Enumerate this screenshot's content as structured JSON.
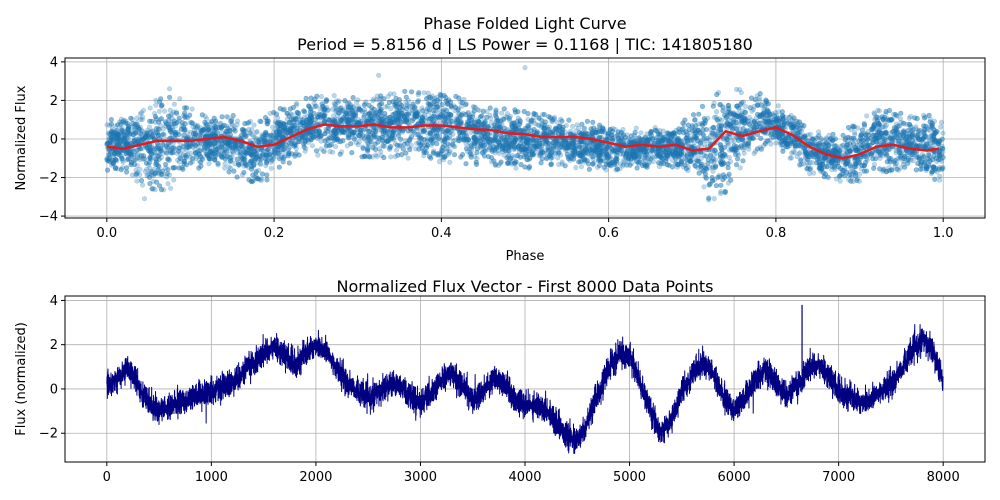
{
  "chart_data": [
    {
      "type": "scatter",
      "title": "Phase Folded Light Curve",
      "subtitle": "Period = 5.8156 d | LS Power = 0.1168 | TIC: 141805180",
      "xlabel": "Phase",
      "ylabel": "Normalized Flux",
      "xlim": [
        -0.05,
        1.05
      ],
      "ylim": [
        -4.1,
        4.2
      ],
      "xticks": [
        0.0,
        0.2,
        0.4,
        0.6,
        0.8,
        1.0
      ],
      "xtick_labels": [
        "0.0",
        "0.2",
        "0.4",
        "0.6",
        "0.8",
        "1.0"
      ],
      "yticks": [
        -4,
        -2,
        0,
        2,
        4
      ],
      "ytick_labels": [
        "−4",
        "−2",
        "0",
        "2",
        "4"
      ],
      "grid": true,
      "series": [
        {
          "kind": "scatter",
          "color": "#1f77b4",
          "opacity": 0.3,
          "approx_point_count": 8000,
          "envelope": {
            "phase": [
              0.0,
              0.02,
              0.04,
              0.06,
              0.08,
              0.1,
              0.12,
              0.14,
              0.16,
              0.18,
              0.2,
              0.22,
              0.24,
              0.26,
              0.28,
              0.3,
              0.32,
              0.34,
              0.36,
              0.38,
              0.4,
              0.42,
              0.44,
              0.46,
              0.48,
              0.5,
              0.52,
              0.54,
              0.56,
              0.58,
              0.6,
              0.62,
              0.64,
              0.66,
              0.68,
              0.7,
              0.72,
              0.74,
              0.76,
              0.78,
              0.8,
              0.82,
              0.84,
              0.86,
              0.88,
              0.9,
              0.92,
              0.94,
              0.96,
              0.98,
              1.0
            ],
            "upper": [
              1.2,
              1.0,
              1.6,
              2.2,
              2.4,
              1.6,
              1.2,
              1.3,
              1.2,
              1.0,
              1.6,
              1.8,
              2.2,
              2.4,
              2.3,
              2.3,
              2.3,
              2.4,
              2.5,
              2.6,
              2.4,
              2.2,
              1.9,
              1.8,
              1.6,
              1.5,
              1.3,
              1.1,
              1.0,
              0.9,
              0.6,
              0.5,
              0.6,
              0.7,
              0.8,
              1.2,
              2.2,
              2.6,
              2.7,
              2.4,
              1.8,
              1.5,
              0.7,
              0.2,
              0.4,
              1.0,
              1.5,
              1.5,
              1.2,
              1.3,
              1.0
            ],
            "lower": [
              -1.8,
              -1.6,
              -2.4,
              -2.8,
              -2.6,
              -1.8,
              -1.4,
              -1.5,
              -2.2,
              -2.6,
              -1.8,
              -1.2,
              -0.9,
              -0.8,
              -0.8,
              -0.9,
              -1.1,
              -1.0,
              -1.1,
              -1.2,
              -1.2,
              -1.3,
              -1.4,
              -1.4,
              -1.5,
              -1.6,
              -1.4,
              -1.4,
              -1.5,
              -1.6,
              -1.7,
              -1.6,
              -1.5,
              -1.5,
              -1.5,
              -2.0,
              -3.3,
              -2.8,
              -1.4,
              -0.7,
              -0.6,
              -1.2,
              -1.8,
              -2.0,
              -2.3,
              -2.2,
              -1.8,
              -1.7,
              -1.8,
              -2.0,
              -2.3
            ]
          }
        },
        {
          "kind": "line",
          "color": "#e41a1c",
          "x": [
            0.0,
            0.02,
            0.04,
            0.06,
            0.08,
            0.1,
            0.12,
            0.14,
            0.16,
            0.18,
            0.2,
            0.22,
            0.24,
            0.26,
            0.28,
            0.3,
            0.32,
            0.34,
            0.36,
            0.38,
            0.4,
            0.42,
            0.44,
            0.46,
            0.48,
            0.5,
            0.52,
            0.54,
            0.56,
            0.58,
            0.6,
            0.62,
            0.64,
            0.66,
            0.68,
            0.7,
            0.72,
            0.74,
            0.76,
            0.78,
            0.8,
            0.82,
            0.84,
            0.86,
            0.88,
            0.9,
            0.92,
            0.94,
            0.96,
            0.98,
            0.995
          ],
          "y": [
            -0.4,
            -0.5,
            -0.3,
            -0.1,
            -0.1,
            -0.1,
            0.0,
            0.1,
            -0.1,
            -0.4,
            -0.3,
            0.1,
            0.5,
            0.75,
            0.65,
            0.65,
            0.75,
            0.6,
            0.6,
            0.7,
            0.7,
            0.6,
            0.5,
            0.45,
            0.3,
            0.25,
            0.1,
            0.1,
            0.1,
            0.0,
            -0.2,
            -0.4,
            -0.3,
            -0.4,
            -0.3,
            -0.6,
            -0.5,
            0.4,
            0.15,
            0.4,
            0.6,
            0.2,
            -0.4,
            -0.8,
            -1.0,
            -0.8,
            -0.4,
            -0.3,
            -0.5,
            -0.6,
            -0.5
          ]
        }
      ]
    },
    {
      "type": "line",
      "title": "Normalized Flux Vector - First 8000 Data Points",
      "xlabel": "",
      "ylabel": "Flux (normalized)",
      "xlim": [
        -400,
        8400
      ],
      "ylim": [
        -3.3,
        4.2
      ],
      "xticks": [
        0,
        1000,
        2000,
        3000,
        4000,
        5000,
        6000,
        7000,
        8000
      ],
      "xtick_labels": [
        "0",
        "1000",
        "2000",
        "3000",
        "4000",
        "5000",
        "6000",
        "7000",
        "8000"
      ],
      "yticks": [
        -2,
        0,
        2,
        4
      ],
      "ytick_labels": [
        "−2",
        "0",
        "2",
        "4"
      ],
      "grid": true,
      "series": [
        {
          "kind": "line",
          "color": "#000080",
          "x": [
            0,
            100,
            200,
            300,
            400,
            500,
            600,
            700,
            800,
            900,
            1000,
            1100,
            1200,
            1300,
            1400,
            1500,
            1600,
            1700,
            1800,
            1900,
            2000,
            2100,
            2200,
            2300,
            2400,
            2500,
            2600,
            2700,
            2800,
            2900,
            3000,
            3100,
            3200,
            3300,
            3400,
            3500,
            3600,
            3700,
            3800,
            3900,
            4000,
            4100,
            4200,
            4300,
            4400,
            4500,
            4600,
            4700,
            4800,
            4900,
            5000,
            5100,
            5200,
            5300,
            5400,
            5500,
            5600,
            5700,
            5800,
            5900,
            6000,
            6100,
            6200,
            6300,
            6400,
            6500,
            6600,
            6700,
            6800,
            6900,
            7000,
            7100,
            7200,
            7300,
            7400,
            7500,
            7600,
            7700,
            7800,
            7900,
            8000
          ],
          "y": [
            0.2,
            0.4,
            1.0,
            0.2,
            -0.6,
            -1.0,
            -0.8,
            -0.6,
            -0.4,
            -0.3,
            -0.1,
            0.1,
            0.3,
            0.7,
            1.2,
            1.6,
            1.9,
            1.5,
            1.1,
            1.6,
            2.0,
            1.7,
            0.9,
            0.3,
            -0.1,
            -0.4,
            -0.2,
            0.3,
            0.2,
            -0.3,
            -0.6,
            -0.3,
            0.4,
            0.7,
            0.2,
            -0.5,
            -0.1,
            0.5,
            0.3,
            -0.5,
            -0.8,
            -0.7,
            -0.9,
            -1.5,
            -2.1,
            -2.4,
            -1.5,
            -0.2,
            0.9,
            1.6,
            1.5,
            0.3,
            -1.0,
            -2.0,
            -1.4,
            -0.1,
            0.7,
            1.2,
            0.7,
            -0.4,
            -0.9,
            -0.5,
            0.4,
            0.9,
            0.3,
            -0.3,
            0.1,
            0.9,
            1.1,
            0.6,
            -0.1,
            -0.3,
            -0.6,
            -0.5,
            -0.1,
            0.2,
            0.9,
            1.7,
            2.2,
            1.8,
            0.4
          ]
        }
      ]
    }
  ]
}
